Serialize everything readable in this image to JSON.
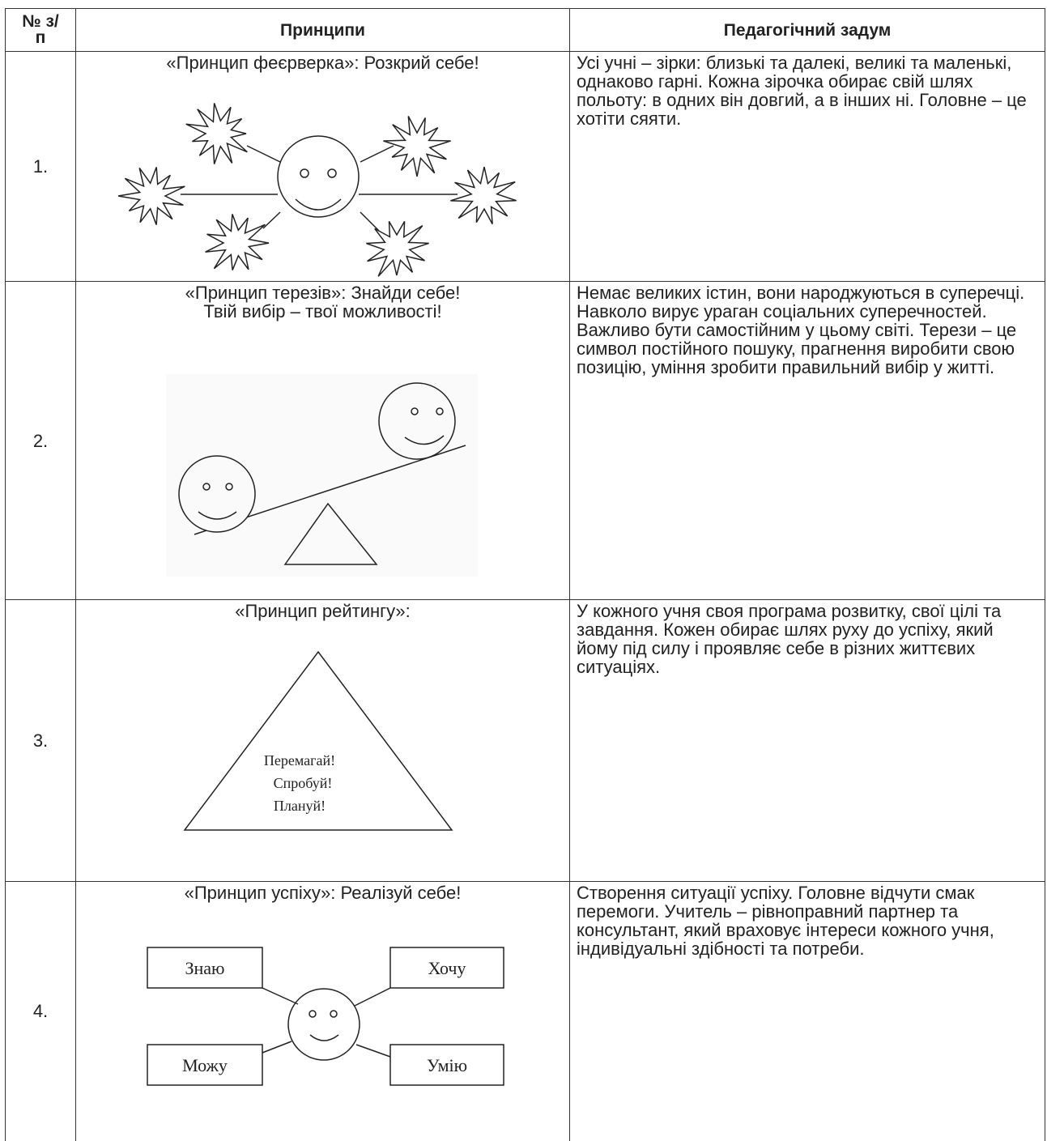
{
  "table": {
    "header": [
      "№ з/п",
      "Принципи",
      "Педагогічний задум"
    ],
    "rows": [
      {
        "number": "1.",
        "principle": [
          "«Принцип феєрверка»: Розкрий себе!"
        ],
        "idea": "Усі учні – зірки: близькі та далекі, великі та маленькі, однаково гарні. Кожна зірочка обирає свій шлях польоту: в одних він довгий, а в інших ні. Головне – це хотіти сяяти."
      },
      {
        "number": "2.",
        "principle": [
          "«Принцип терезів»: Знайди себе!",
          "Твій вибір – твої можливості!"
        ],
        "idea": "Немає великих істин, вони народжуються в суперечці. Навколо вирує ураган соціальних суперечностей. Важливо бути самостійним у цьому світі. Терези – це символ постійного пошуку, прагнення виробити свою позицію, уміння зробити правильний вибір у житті."
      },
      {
        "number": "3.",
        "principle": [
          "«Принцип рейтингу»:"
        ],
        "idea": "У кожного учня своя програма розвитку, свої цілі та завдання. Кожен обирає шлях руху до успіху, який йому під силу і проявляє себе в різних життєвих ситуаціях.",
        "diagram": [
          "Перемагай!",
          "Спробуй!",
          "Плануй!"
        ]
      },
      {
        "number": "4.",
        "principle": [
          "«Принцип успіху»: Реалізуй себе!"
        ],
        "idea": "Створення ситуації успіху. Головне відчути смак перемоги. Учитель – рівноправний партнер та консультант, який враховує інтереси кожного учня, індивідуальні здібності та потреби.",
        "diagram": [
          "Знаю",
          "Хочу",
          "Можу",
          "Умію"
        ]
      }
    ]
  }
}
